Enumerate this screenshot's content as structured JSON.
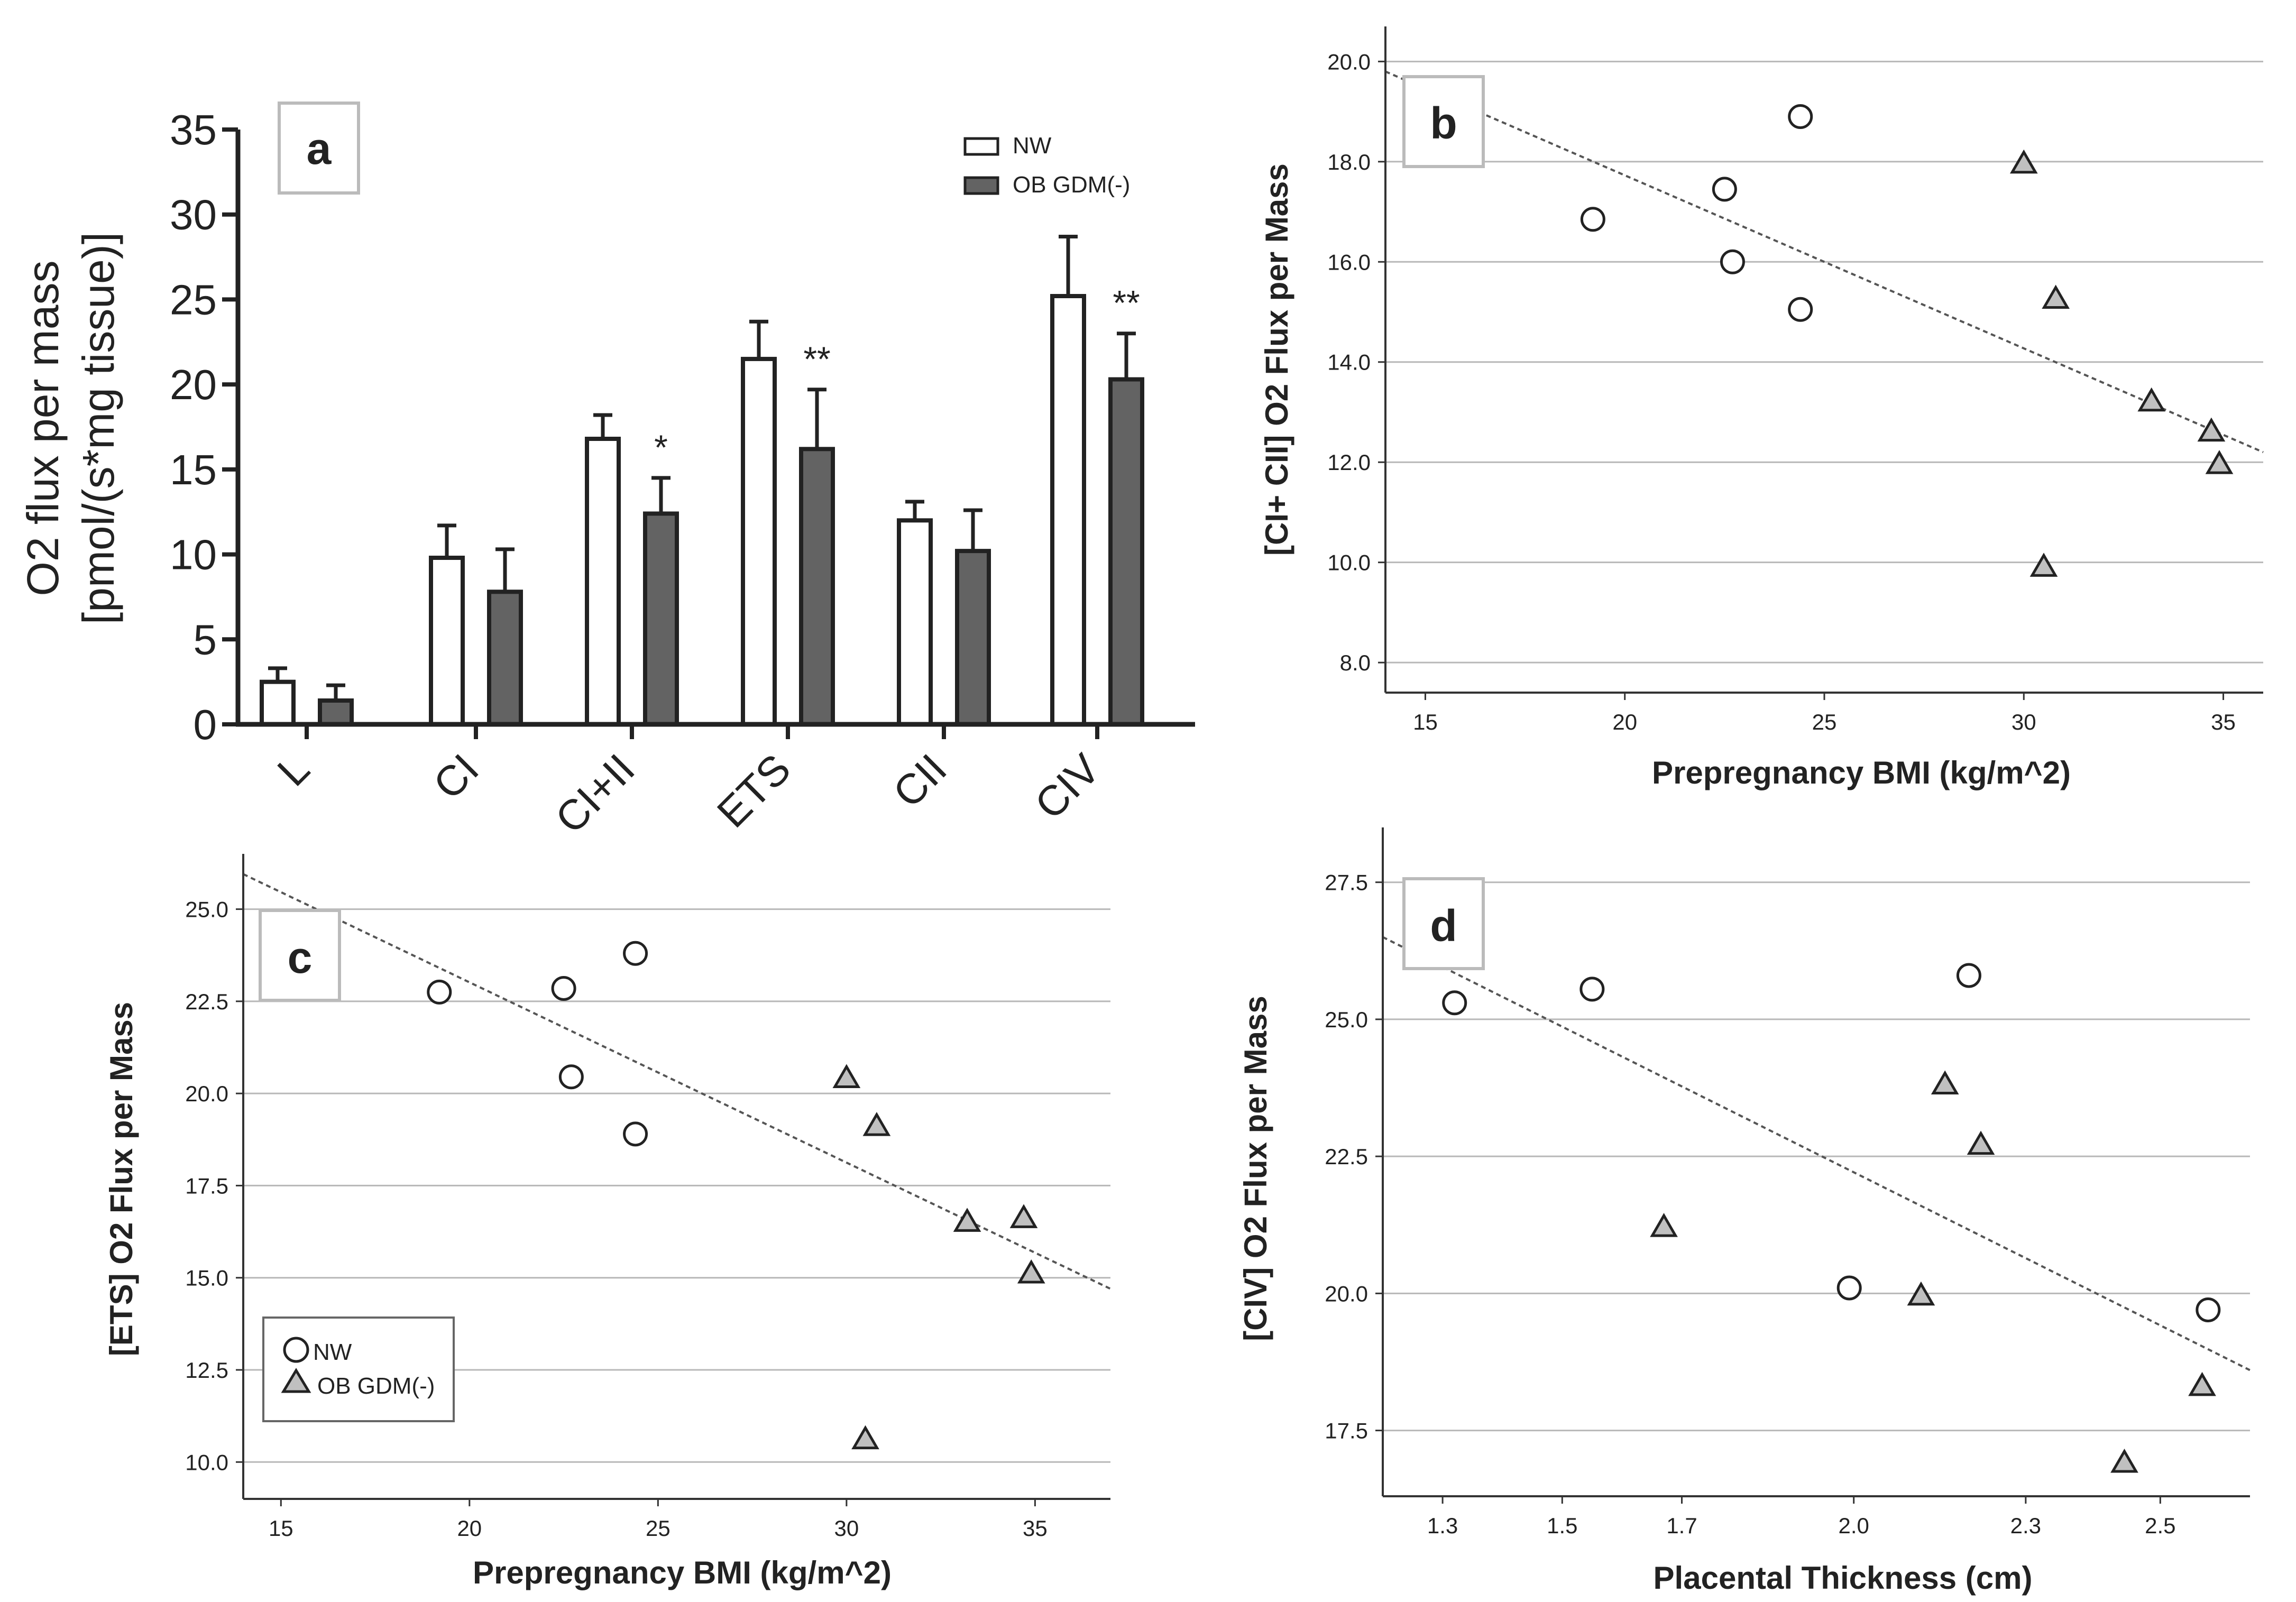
{
  "chart_data": [
    {
      "panel": "a",
      "type": "bar",
      "ylabel": [
        "O2 flux per mass",
        "[pmol/(s*mg tissue)]"
      ],
      "xlabel": "",
      "ylim": [
        0,
        35
      ],
      "yticks": [
        0,
        5,
        10,
        15,
        20,
        25,
        30,
        35
      ],
      "categories": [
        "L",
        "CI",
        "CI+II",
        "ETS",
        "CII",
        "CIV"
      ],
      "series": [
        {
          "name": "NW",
          "values": [
            2.5,
            9.8,
            16.8,
            21.5,
            12.0,
            25.2
          ],
          "errors": [
            0.8,
            1.9,
            1.4,
            2.2,
            1.1,
            3.5
          ],
          "color": "#ffffff"
        },
        {
          "name": "OB GDM(-)",
          "values": [
            1.4,
            7.8,
            12.4,
            16.2,
            10.2,
            20.3
          ],
          "errors": [
            0.9,
            2.5,
            2.1,
            3.5,
            2.4,
            2.7
          ],
          "color": "#636363"
        }
      ],
      "significance": [
        "",
        "",
        "*",
        "**",
        "",
        "**"
      ],
      "legend": {
        "position": "top-right"
      }
    },
    {
      "panel": "b",
      "type": "scatter",
      "xlabel": "Prepregnancy BMI (kg/m^2)",
      "ylabel": "[CI+ CII] O2 Flux per Mass",
      "xlim": [
        14,
        36
      ],
      "ylim": [
        7.4,
        20.7
      ],
      "xticks": [
        "15",
        "20",
        "25",
        "30",
        "35"
      ],
      "yticks": [
        "8.0",
        "10.0",
        "12.0",
        "14.0",
        "16.0",
        "18.0",
        "20.0"
      ],
      "grid": true,
      "series": [
        {
          "name": "NW",
          "marker": "circle",
          "points": [
            [
              19.2,
              16.85
            ],
            [
              22.5,
              17.45
            ],
            [
              22.7,
              16.0
            ],
            [
              24.4,
              15.05
            ],
            [
              24.4,
              18.9
            ]
          ]
        },
        {
          "name": "OB GDM(-)",
          "marker": "triangle",
          "points": [
            [
              30.0,
              17.95
            ],
            [
              30.8,
              15.25
            ],
            [
              33.2,
              13.2
            ],
            [
              34.7,
              12.6
            ],
            [
              34.9,
              11.95
            ],
            [
              30.5,
              9.9
            ]
          ]
        }
      ],
      "trendline": [
        [
          14,
          19.8
        ],
        [
          36,
          12.2
        ]
      ]
    },
    {
      "panel": "c",
      "type": "scatter",
      "xlabel": "Prepregnancy BMI (kg/m^2)",
      "ylabel": "[ETS] O2 Flux per Mass",
      "xlim": [
        14,
        37
      ],
      "ylim": [
        9.0,
        26.5
      ],
      "xticks": [
        "15",
        "20",
        "25",
        "30",
        "35"
      ],
      "yticks": [
        "10.0",
        "12.5",
        "15.0",
        "17.5",
        "20.0",
        "22.5",
        "25.0"
      ],
      "grid": true,
      "series": [
        {
          "name": "NW",
          "marker": "circle",
          "points": [
            [
              19.2,
              22.75
            ],
            [
              22.5,
              22.85
            ],
            [
              22.7,
              20.45
            ],
            [
              24.4,
              18.9
            ],
            [
              24.4,
              23.8
            ]
          ]
        },
        {
          "name": "OB GDM(-)",
          "marker": "triangle",
          "points": [
            [
              30.0,
              20.4
            ],
            [
              30.8,
              19.1
            ],
            [
              33.2,
              16.5
            ],
            [
              34.7,
              16.6
            ],
            [
              34.9,
              15.1
            ],
            [
              30.5,
              10.6
            ]
          ]
        }
      ],
      "trendline": [
        [
          14,
          25.95
        ],
        [
          37,
          14.7
        ]
      ],
      "legend": {
        "position": "bottom-left",
        "entries": [
          "NW",
          "OB GDM(-)"
        ]
      }
    },
    {
      "panel": "d",
      "type": "scatter",
      "xlabel": "Placental Thickness (cm)",
      "ylabel": "[CIV] O2 Flux per Mass",
      "xlim": [
        1.2,
        2.65
      ],
      "ylim": [
        16.3,
        28.5
      ],
      "xticks": [
        "1.3",
        "1.5",
        "1.7",
        "2.0",
        "2.3",
        "2.5"
      ],
      "xtick_values": [
        1.3,
        1.5,
        1.7,
        1.9875,
        2.275,
        2.5
      ],
      "yticks": [
        "17.5",
        "20.0",
        "22.5",
        "25.0",
        "27.5"
      ],
      "grid": true,
      "series": [
        {
          "name": "NW",
          "marker": "circle",
          "points": [
            [
              1.32,
              25.3
            ],
            [
              1.55,
              25.55
            ],
            [
              2.18,
              25.8
            ],
            [
              1.98,
              20.1
            ],
            [
              2.58,
              19.7
            ]
          ]
        },
        {
          "name": "OB GDM(-)",
          "marker": "triangle",
          "points": [
            [
              2.14,
              23.8
            ],
            [
              2.2,
              22.7
            ],
            [
              1.67,
              21.2
            ],
            [
              2.1,
              19.95
            ],
            [
              2.57,
              18.3
            ],
            [
              2.44,
              16.9
            ]
          ]
        }
      ],
      "trendline": [
        [
          1.2,
          26.5
        ],
        [
          2.65,
          18.6
        ]
      ]
    }
  ],
  "panel_labels": {
    "a": "a",
    "b": "b",
    "c": "c",
    "d": "d"
  },
  "colors": {
    "nw_fill": "#ffffff",
    "ob_fill": "#636363",
    "marker_ob": "#c0c0c0",
    "grid": "#b8b8b8",
    "trend": "#555555"
  }
}
